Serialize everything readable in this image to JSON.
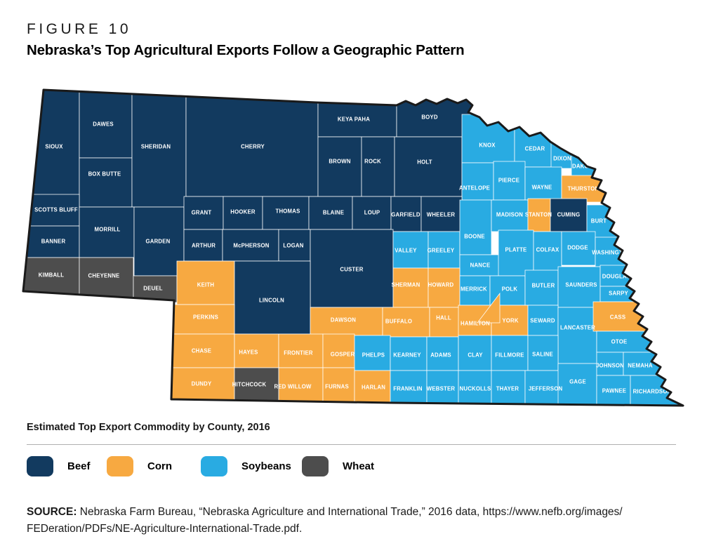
{
  "figure": {
    "eyebrow": "FIGURE 10",
    "title": "Nebraska’s Top Agricultural Exports Follow a Geographic Pattern"
  },
  "map": {
    "subtitle": "Estimated Top Export Commodity by County, 2016",
    "counties": [
      {
        "name": "SIOUX",
        "commodity": "beef"
      },
      {
        "name": "DAWES",
        "commodity": "beef"
      },
      {
        "name": "BOX BUTTE",
        "commodity": "beef"
      },
      {
        "name": "SHERIDAN",
        "commodity": "beef"
      },
      {
        "name": "CHERRY",
        "commodity": "beef"
      },
      {
        "name": "KEYA PAHA",
        "commodity": "beef"
      },
      {
        "name": "BOYD",
        "commodity": "beef"
      },
      {
        "name": "BROWN",
        "commodity": "beef"
      },
      {
        "name": "ROCK",
        "commodity": "beef"
      },
      {
        "name": "HOLT",
        "commodity": "beef"
      },
      {
        "name": "KNOX",
        "commodity": "soybeans"
      },
      {
        "name": "CEDAR",
        "commodity": "soybeans"
      },
      {
        "name": "DIXON",
        "commodity": "soybeans"
      },
      {
        "name": "DAKOTA",
        "commodity": "soybeans"
      },
      {
        "name": "ANTELOPE",
        "commodity": "soybeans"
      },
      {
        "name": "PIERCE",
        "commodity": "soybeans"
      },
      {
        "name": "WAYNE",
        "commodity": "soybeans"
      },
      {
        "name": "THURSTON",
        "commodity": "corn"
      },
      {
        "name": "SCOTTS BLUFF",
        "commodity": "beef"
      },
      {
        "name": "BANNER",
        "commodity": "beef"
      },
      {
        "name": "KIMBALL",
        "commodity": "wheat"
      },
      {
        "name": "MORRILL",
        "commodity": "beef"
      },
      {
        "name": "CHEYENNE",
        "commodity": "wheat"
      },
      {
        "name": "GARDEN",
        "commodity": "beef"
      },
      {
        "name": "DEUEL",
        "commodity": "wheat"
      },
      {
        "name": "GRANT",
        "commodity": "beef"
      },
      {
        "name": "HOOKER",
        "commodity": "beef"
      },
      {
        "name": "THOMAS",
        "commodity": "beef"
      },
      {
        "name": "BLAINE",
        "commodity": "beef"
      },
      {
        "name": "LOUP",
        "commodity": "beef"
      },
      {
        "name": "GARFIELD",
        "commodity": "beef"
      },
      {
        "name": "WHEELER",
        "commodity": "beef"
      },
      {
        "name": "ARTHUR",
        "commodity": "beef"
      },
      {
        "name": "McPHERSON",
        "commodity": "beef"
      },
      {
        "name": "LOGAN",
        "commodity": "beef"
      },
      {
        "name": "CUSTER",
        "commodity": "beef"
      },
      {
        "name": "VALLEY",
        "commodity": "soybeans"
      },
      {
        "name": "GREELEY",
        "commodity": "soybeans"
      },
      {
        "name": "BOONE",
        "commodity": "soybeans"
      },
      {
        "name": "NANCE",
        "commodity": "soybeans"
      },
      {
        "name": "MADISON",
        "commodity": "soybeans"
      },
      {
        "name": "STANTON",
        "commodity": "corn"
      },
      {
        "name": "CUMING",
        "commodity": "beef"
      },
      {
        "name": "BURT",
        "commodity": "soybeans"
      },
      {
        "name": "PLATTE",
        "commodity": "soybeans"
      },
      {
        "name": "COLFAX",
        "commodity": "soybeans"
      },
      {
        "name": "DODGE",
        "commodity": "soybeans"
      },
      {
        "name": "WASHINGTON",
        "commodity": "soybeans"
      },
      {
        "name": "KEITH",
        "commodity": "corn"
      },
      {
        "name": "LINCOLN",
        "commodity": "beef"
      },
      {
        "name": "SHERMAN",
        "commodity": "corn"
      },
      {
        "name": "HOWARD",
        "commodity": "corn"
      },
      {
        "name": "MERRICK",
        "commodity": "soybeans"
      },
      {
        "name": "POLK",
        "commodity": "soybeans"
      },
      {
        "name": "BUTLER",
        "commodity": "soybeans"
      },
      {
        "name": "SAUNDERS",
        "commodity": "soybeans"
      },
      {
        "name": "DOUGLAS",
        "commodity": "soybeans"
      },
      {
        "name": "SARPY",
        "commodity": "soybeans"
      },
      {
        "name": "PERKINS",
        "commodity": "corn"
      },
      {
        "name": "DAWSON",
        "commodity": "corn"
      },
      {
        "name": "BUFFALO",
        "commodity": "corn"
      },
      {
        "name": "HALL",
        "commodity": "corn"
      },
      {
        "name": "HAMILTON",
        "commodity": "corn"
      },
      {
        "name": "YORK",
        "commodity": "corn"
      },
      {
        "name": "SEWARD",
        "commodity": "soybeans"
      },
      {
        "name": "LANCASTER",
        "commodity": "soybeans"
      },
      {
        "name": "CASS",
        "commodity": "corn"
      },
      {
        "name": "CHASE",
        "commodity": "corn"
      },
      {
        "name": "HAYES",
        "commodity": "corn"
      },
      {
        "name": "FRONTIER",
        "commodity": "corn"
      },
      {
        "name": "GOSPER",
        "commodity": "corn"
      },
      {
        "name": "PHELPS",
        "commodity": "soybeans"
      },
      {
        "name": "KEARNEY",
        "commodity": "soybeans"
      },
      {
        "name": "ADAMS",
        "commodity": "soybeans"
      },
      {
        "name": "CLAY",
        "commodity": "soybeans"
      },
      {
        "name": "FILLMORE",
        "commodity": "soybeans"
      },
      {
        "name": "SALINE",
        "commodity": "soybeans"
      },
      {
        "name": "OTOE",
        "commodity": "soybeans"
      },
      {
        "name": "DUNDY",
        "commodity": "corn"
      },
      {
        "name": "HITCHCOCK",
        "commodity": "wheat"
      },
      {
        "name": "RED WILLOW",
        "commodity": "corn"
      },
      {
        "name": "FURNAS",
        "commodity": "corn"
      },
      {
        "name": "HARLAN",
        "commodity": "corn"
      },
      {
        "name": "FRANKLIN",
        "commodity": "soybeans"
      },
      {
        "name": "WEBSTER",
        "commodity": "soybeans"
      },
      {
        "name": "NUCKOLLS",
        "commodity": "soybeans"
      },
      {
        "name": "THAYER",
        "commodity": "soybeans"
      },
      {
        "name": "JEFFERSON",
        "commodity": "soybeans"
      },
      {
        "name": "GAGE",
        "commodity": "soybeans"
      },
      {
        "name": "JOHNSON",
        "commodity": "soybeans"
      },
      {
        "name": "NEMAHA",
        "commodity": "soybeans"
      },
      {
        "name": "PAWNEE",
        "commodity": "soybeans"
      },
      {
        "name": "RICHARDSON",
        "commodity": "soybeans"
      }
    ]
  },
  "legend": {
    "items": [
      {
        "key": "beef",
        "label": "Beef",
        "color": "#123A5F"
      },
      {
        "key": "corn",
        "label": "Corn",
        "color": "#F7A941"
      },
      {
        "key": "soybeans",
        "label": "Soybeans",
        "color": "#29ABE2"
      },
      {
        "key": "wheat",
        "label": "Wheat",
        "color": "#4D4D4D"
      }
    ]
  },
  "source": {
    "label": "SOURCE:",
    "line1": " Nebraska Farm Bureau, “Nebraska Agriculture and International Trade,” 2016 data, https://www.nefb.org/images/",
    "line2": "FEDeration/PDFs/NE-Agriculture-International-Trade.pdf."
  },
  "colors": {
    "outline": "#1A1A1A",
    "county_border": "#FFFFFF"
  }
}
